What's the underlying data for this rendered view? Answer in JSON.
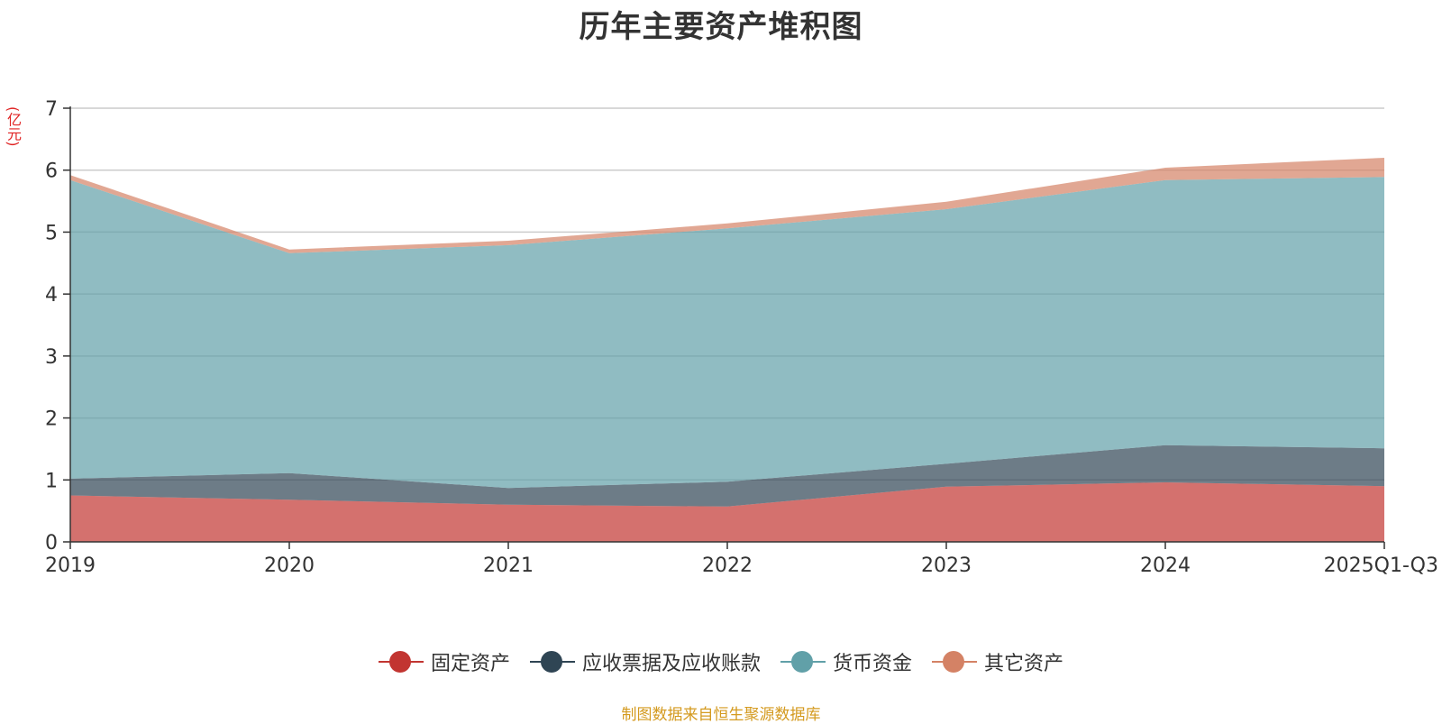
{
  "chart_data": {
    "type": "area",
    "stacked": true,
    "title": "历年主要资产堆积图",
    "ylabel": "(亿元)",
    "xlabel": "",
    "categories": [
      "2019",
      "2020",
      "2021",
      "2022",
      "2023",
      "2024",
      "2025Q1-Q3"
    ],
    "ylim": [
      0,
      7
    ],
    "yticks": [
      0,
      1,
      2,
      3,
      4,
      5,
      6,
      7
    ],
    "grid": true,
    "legend_position": "bottom",
    "series": [
      {
        "name": "固定资产",
        "color": "#c23531",
        "values": [
          0.75,
          0.68,
          0.6,
          0.57,
          0.89,
          0.96,
          0.9
        ]
      },
      {
        "name": "应收票据及应收账款",
        "color": "#2f4554",
        "values": [
          0.27,
          0.43,
          0.27,
          0.4,
          0.37,
          0.6,
          0.61
        ]
      },
      {
        "name": "货币资金",
        "color": "#61a0a8",
        "values": [
          4.82,
          3.55,
          3.92,
          4.09,
          4.11,
          4.28,
          4.38
        ]
      },
      {
        "name": "其它资产",
        "color": "#d48265",
        "values": [
          0.08,
          0.06,
          0.07,
          0.08,
          0.12,
          0.2,
          0.31
        ]
      }
    ]
  },
  "footer": {
    "source": "制图数据来自恒生聚源数据库"
  }
}
